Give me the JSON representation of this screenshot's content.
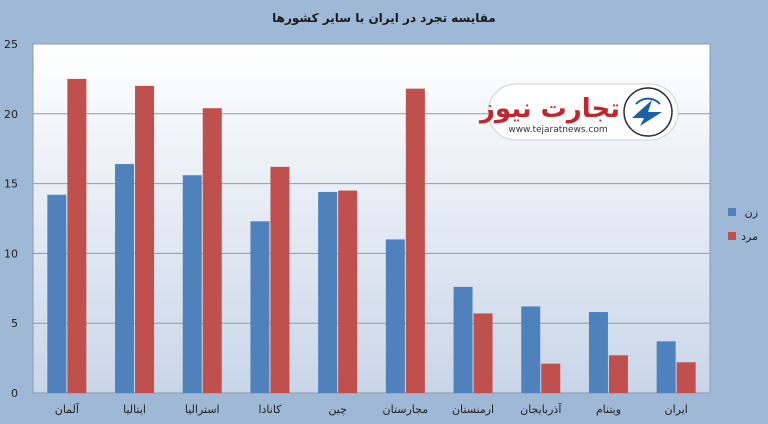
{
  "chart_data": {
    "type": "bar",
    "title": "مقایسه تجرد در ایران با سایر کشورها",
    "categories": [
      "آلمان",
      "ایتالیا",
      "استرالیا",
      "کانادا",
      "چین",
      "مجارستان",
      "ارمنستان",
      "آذربایجان",
      "ویتنام",
      "ایران"
    ],
    "series": [
      {
        "name": "زن",
        "color": "#4f81bd",
        "values": [
          14.2,
          16.4,
          15.6,
          12.3,
          14.4,
          11.0,
          7.6,
          6.2,
          5.8,
          3.7
        ]
      },
      {
        "name": "مرد",
        "color": "#c0504d",
        "values": [
          22.5,
          22.0,
          20.4,
          16.2,
          14.5,
          21.8,
          5.7,
          2.1,
          2.7,
          2.2
        ]
      }
    ],
    "ylim": [
      0,
      25
    ],
    "yticks": [
      0,
      5,
      10,
      15,
      20,
      25
    ],
    "grid": true,
    "legend_position": "right"
  },
  "watermark": {
    "brand": "تجارت نیوز",
    "url": "www.tejaratnews.com",
    "icon": "arrow-logo-icon"
  }
}
